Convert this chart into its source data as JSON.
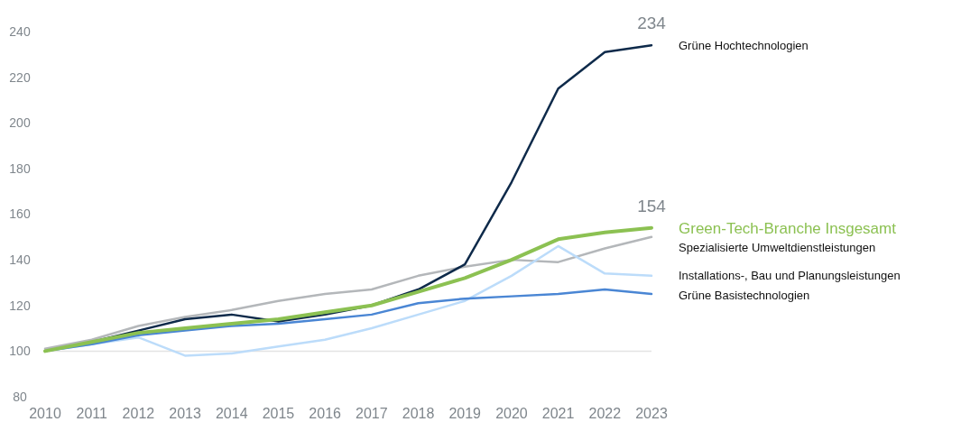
{
  "chart_data": {
    "type": "line",
    "x": [
      2010,
      2011,
      2012,
      2013,
      2014,
      2015,
      2016,
      2017,
      2018,
      2019,
      2020,
      2021,
      2022,
      2023
    ],
    "xlim": [
      2010,
      2023
    ],
    "xticks": [
      2010,
      2011,
      2012,
      2013,
      2014,
      2015,
      2016,
      2017,
      2018,
      2019,
      2020,
      2021,
      2022,
      2023
    ],
    "ylim": [
      80,
      240
    ],
    "yticks": [
      80,
      100,
      120,
      140,
      160,
      180,
      200,
      220,
      240
    ],
    "grid": false,
    "legend": "right",
    "marker": "none",
    "line_style": "solid",
    "ref_lines": [
      {
        "axis": "y",
        "value": 100,
        "color": "#e3e3e3"
      }
    ],
    "series": [
      {
        "name": "Spezialisierte Umweltdienstleistungen",
        "color": "#b4b7ba",
        "values": [
          101,
          105,
          111,
          115,
          118,
          122,
          125,
          127,
          133,
          137,
          140,
          139,
          145,
          150
        ]
      },
      {
        "name": "Installations-, Bau und Planungsleistungen",
        "color": "#bcdcfa",
        "values": [
          100,
          103,
          106,
          98,
          99,
          102,
          105,
          110,
          116,
          122,
          133,
          146,
          134,
          133
        ]
      },
      {
        "name": "Grüne Basistechnologien",
        "color": "#4a86d4",
        "values": [
          100,
          103,
          107,
          109,
          111,
          112,
          114,
          116,
          121,
          123,
          124,
          125,
          127,
          125
        ]
      },
      {
        "name": "Grüne Hochtechnologien",
        "color": "#0e2a4a",
        "values": [
          100,
          104,
          109,
          114,
          116,
          113,
          116,
          120,
          127,
          138,
          174,
          215,
          231,
          234
        ],
        "value_labels": [
          null,
          null,
          null,
          null,
          null,
          null,
          null,
          null,
          null,
          null,
          null,
          null,
          null,
          "234"
        ]
      },
      {
        "name": "Green-Tech-Branche Insgesamt",
        "color": "#8cc152",
        "values": [
          100,
          104,
          108,
          110,
          112,
          114,
          117,
          120,
          126,
          132,
          140,
          149,
          152,
          154
        ],
        "value_labels": [
          null,
          null,
          null,
          null,
          null,
          null,
          null,
          null,
          null,
          null,
          null,
          null,
          null,
          "154"
        ]
      }
    ]
  }
}
